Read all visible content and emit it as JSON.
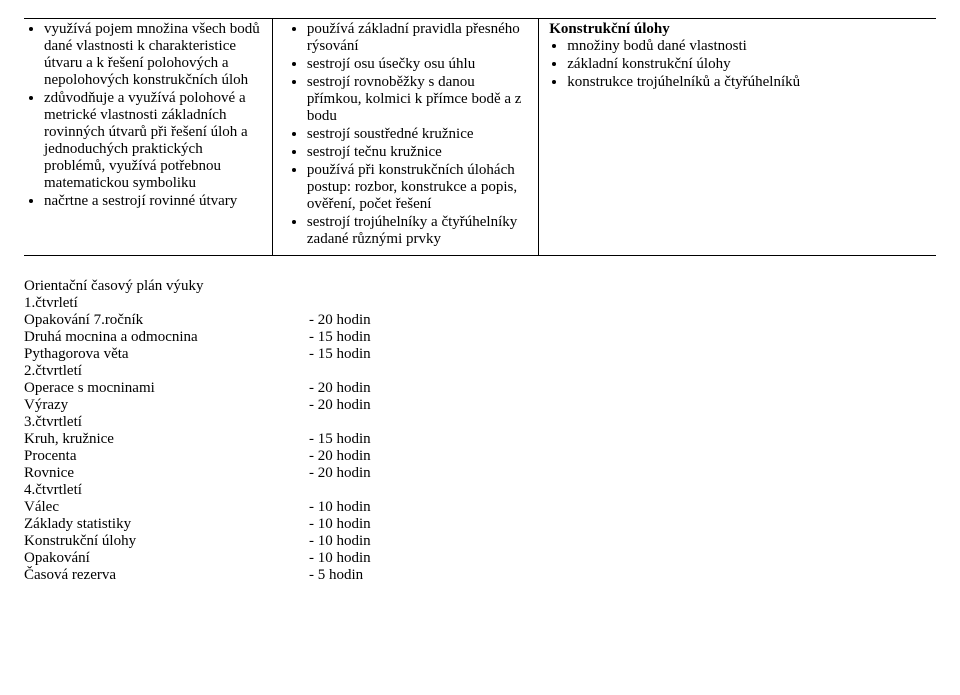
{
  "table": {
    "col1": {
      "items": [
        "využívá pojem množina všech bodů dané vlastnosti k charakteristice útvaru a k řešení polohových a nepolohových konstrukčních úloh",
        "zdůvodňuje a využívá polohové a metrické vlastnosti základních rovinných útvarů při řešení úloh a jednoduchých praktických problémů, využívá potřebnou matematickou symboliku",
        "načrtne a sestrojí rovinné útvary"
      ]
    },
    "col2": {
      "items": [
        "používá základní pravidla přesného rýsování",
        "sestrojí osu úsečky osu úhlu",
        "sestrojí rovnoběžky s danou přímkou, kolmici k přímce bodě a z bodu",
        "sestrojí soustředné kružnice",
        "sestrojí tečnu kružnice",
        "používá při konstrukčních úlohách postup: rozbor, konstrukce a popis, ověření, počet řešení",
        "sestrojí trojúhelníky a čtyřúhelníky zadané různými prvky"
      ]
    },
    "col3": {
      "title": "Konstrukční úlohy",
      "items": [
        "množiny bodů dané vlastnosti",
        "základní konstrukční úlohy",
        "konstrukce trojúhelníků a čtyřúhelníků"
      ]
    }
  },
  "plan": {
    "heading": "Orientační časový plán výuky",
    "q1": "1.čtvrletí",
    "q2": "2.čtvrtletí",
    "q3": "3.čtvrtletí",
    "q4": "4.čtvrtletí",
    "rows": [
      {
        "label": "Opakování 7.ročník",
        "value": "- 20 hodin"
      },
      {
        "label": "Druhá mocnina a odmocnina",
        "value": "- 15 hodin"
      },
      {
        "label": "Pythagorova věta",
        "value": "- 15 hodin"
      },
      {
        "label": "Operace s mocninami",
        "value": "- 20 hodin"
      },
      {
        "label": "Výrazy",
        "value": "- 20 hodin"
      },
      {
        "label": "Kruh, kružnice",
        "value": "- 15 hodin"
      },
      {
        "label": "Procenta",
        "value": "- 20 hodin"
      },
      {
        "label": "Rovnice",
        "value": "- 20 hodin"
      },
      {
        "label": "Válec",
        "value": "- 10 hodin"
      },
      {
        "label": "Základy statistiky",
        "value": "- 10 hodin"
      },
      {
        "label": "Konstrukční úlohy",
        "value": "- 10 hodin"
      },
      {
        "label": "Opakování",
        "value": "- 10 hodin"
      },
      {
        "label": "Časová rezerva",
        "value": "- 5 hodin"
      }
    ]
  }
}
